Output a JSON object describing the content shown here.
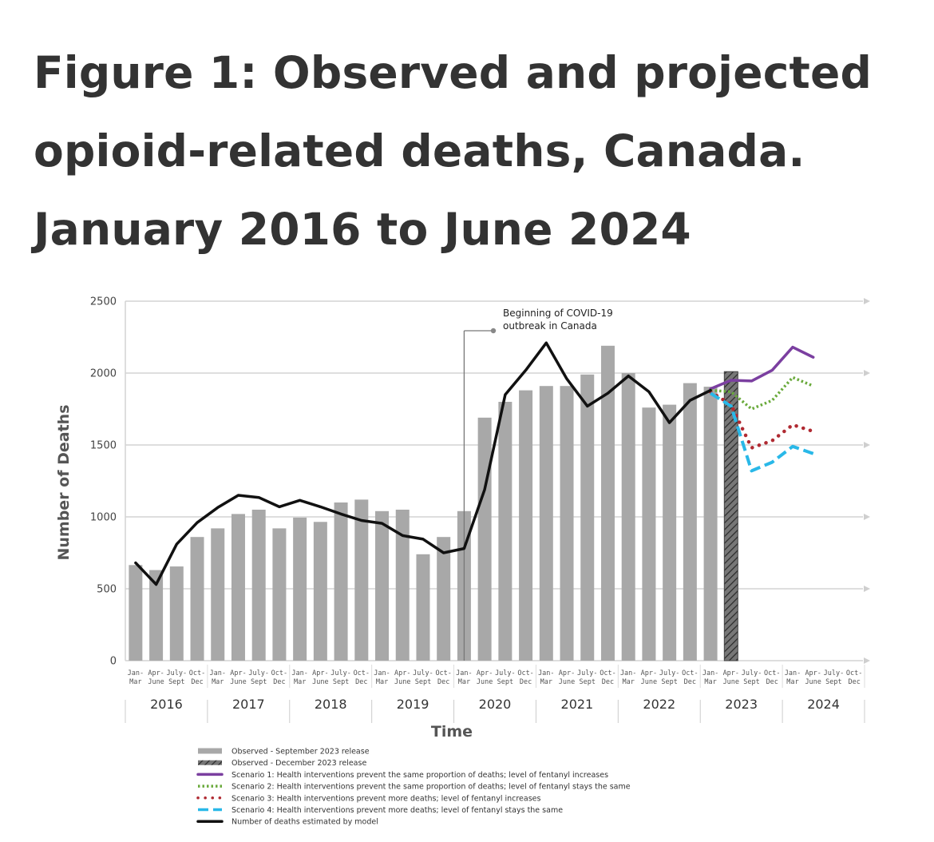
{
  "title_lines": [
    "Figure 1: Observed and projected",
    "opioid-related deaths, Canada.",
    "January 2016 to June 2024"
  ],
  "chart_data": {
    "type": "bar",
    "title": "Figure 1: Observed and projected opioid-related deaths, Canada. January 2016 to June 2024",
    "xlabel": "Time",
    "ylabel": "Number of Deaths",
    "ylim": [
      0,
      2500
    ],
    "yticks": [
      0,
      500,
      1000,
      1500,
      2000,
      2500
    ],
    "grid": true,
    "quarter_labels": [
      [
        "Jan-",
        "Mar"
      ],
      [
        "Apr-",
        "June"
      ],
      [
        "July-",
        "Sept"
      ],
      [
        "Oct-",
        "Dec"
      ]
    ],
    "years": [
      "2016",
      "2017",
      "2018",
      "2019",
      "2020",
      "2021",
      "2022",
      "2023",
      "2024"
    ],
    "series": [
      {
        "name": "Observed - September 2023 release",
        "kind": "bar",
        "color": "#a8a8a8",
        "start_index": 0,
        "values": [
          665,
          630,
          655,
          860,
          920,
          1020,
          1050,
          920,
          995,
          965,
          1100,
          1120,
          1040,
          1050,
          740,
          860,
          1040,
          1690,
          1800,
          1880,
          1910,
          1910,
          1990,
          2190,
          2000,
          1760,
          1780,
          1930,
          1905
        ]
      },
      {
        "name": "Observed - December 2023 release",
        "kind": "hatched-bar",
        "color": "#555555",
        "start_index": 29,
        "values": [
          2010
        ]
      },
      {
        "name": "Scenario 1: Health interventions prevent the same proportion of deaths; level of fentanyl increases",
        "kind": "line",
        "color": "#7b3fa0",
        "start_index": 28,
        "values": [
          1890,
          1950,
          1945,
          2020,
          2180,
          2110
        ]
      },
      {
        "name": "Scenario 2: Health interventions prevent the same proportion of deaths; level of fentanyl stays the same",
        "kind": "line",
        "color": "#6aaa3c",
        "start_index": 28,
        "values": [
          1880,
          1870,
          1750,
          1810,
          1970,
          1910
        ]
      },
      {
        "name": "Scenario 3: Health interventions prevent more deaths; level of fentanyl increases",
        "kind": "line",
        "color": "#b02a32",
        "start_index": 28,
        "values": [
          1870,
          1780,
          1480,
          1530,
          1640,
          1595
        ]
      },
      {
        "name": "Scenario 4: Health interventions prevent more deaths; level of fentanyl stays the same",
        "kind": "line",
        "color": "#29b8e8",
        "start_index": 28,
        "values": [
          1860,
          1770,
          1320,
          1380,
          1490,
          1440
        ]
      },
      {
        "name": "Number of deaths estimated by model",
        "kind": "line",
        "color": "#111111",
        "start_index": 0,
        "values": [
          680,
          530,
          810,
          960,
          1065,
          1150,
          1135,
          1070,
          1115,
          1070,
          1020,
          975,
          955,
          870,
          845,
          750,
          780,
          1190,
          1850,
          2020,
          2210,
          1960,
          1770,
          1860,
          1980,
          1870,
          1655,
          1810,
          1880
        ]
      }
    ],
    "annotations": [
      {
        "text_lines": [
          "Beginning of COVID-19",
          "outbreak in Canada"
        ],
        "at_index": 16.5
      }
    ]
  }
}
